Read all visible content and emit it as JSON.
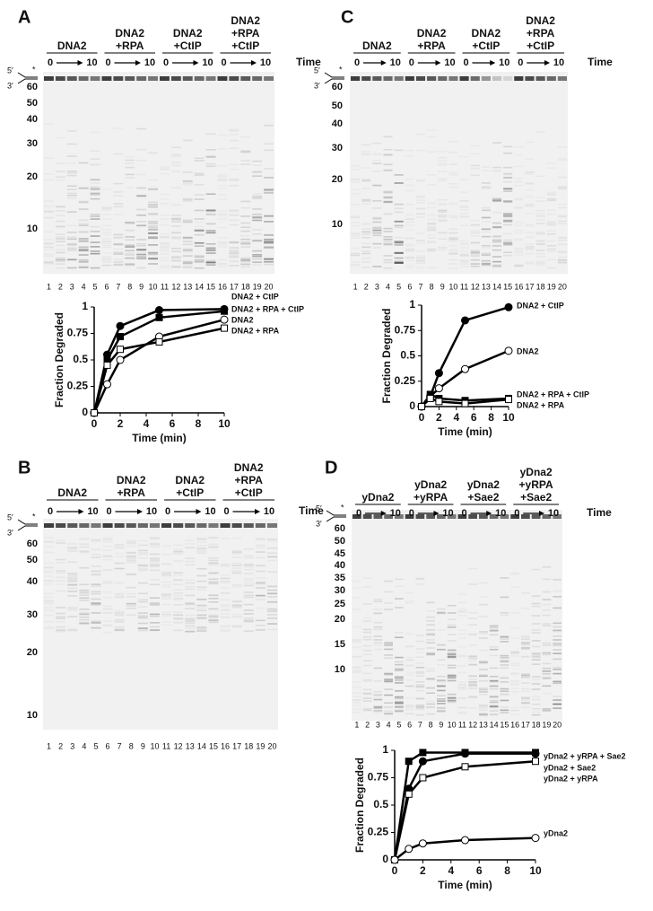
{
  "panels": [
    {
      "label": "A",
      "groups": [
        [
          "DNA2"
        ],
        [
          "DNA2",
          "+RPA"
        ],
        [
          "DNA2",
          "+CtIP"
        ],
        [
          "DNA2",
          "+RPA",
          "+CtIP"
        ]
      ],
      "time_start": 0,
      "time_end": 10,
      "time_label": "Time",
      "five_prime": "5′",
      "three_prime": "3′",
      "star": "*",
      "markers": [
        60,
        50,
        40,
        30,
        20,
        10
      ],
      "lanes": [
        1,
        2,
        3,
        4,
        5,
        6,
        7,
        8,
        9,
        10,
        11,
        12,
        13,
        14,
        15,
        16,
        17,
        18,
        19,
        20
      ]
    },
    {
      "label": "B",
      "groups": [
        [
          "DNA2"
        ],
        [
          "DNA2",
          "+RPA"
        ],
        [
          "DNA2",
          "+CtIP"
        ],
        [
          "DNA2",
          "+RPA",
          "+CtIP"
        ]
      ],
      "time_start": 0,
      "time_end": 10,
      "time_label": "Time",
      "five_prime": "5′",
      "three_prime": "3′",
      "star": "*",
      "markers": [
        60,
        50,
        40,
        30,
        20,
        10
      ],
      "lanes": [
        1,
        2,
        3,
        4,
        5,
        6,
        7,
        8,
        9,
        10,
        11,
        12,
        13,
        14,
        15,
        16,
        17,
        18,
        19,
        20
      ]
    },
    {
      "label": "C",
      "groups": [
        [
          "DNA2"
        ],
        [
          "DNA2",
          "+RPA"
        ],
        [
          "DNA2",
          "+CtIP"
        ],
        [
          "DNA2",
          "+RPA",
          "+CtIP"
        ]
      ],
      "time_start": 0,
      "time_end": 10,
      "time_label": "Time",
      "five_prime": "5′",
      "three_prime": "3′",
      "star": "*",
      "markers": [
        60,
        50,
        40,
        30,
        20,
        10
      ],
      "lanes": [
        1,
        2,
        3,
        4,
        5,
        6,
        7,
        8,
        9,
        10,
        11,
        12,
        13,
        14,
        15,
        16,
        17,
        18,
        19,
        20
      ]
    },
    {
      "label": "D",
      "groups": [
        [
          "yDna2"
        ],
        [
          "yDna2",
          "+yRPA"
        ],
        [
          "yDna2",
          "+Sae2"
        ],
        [
          "yDna2",
          "+yRPA",
          "+Sae2"
        ]
      ],
      "time_start": 0,
      "time_end": 10,
      "time_label": "Time",
      "five_prime": "5′",
      "three_prime": "3′",
      "star": "*",
      "markers": [
        60,
        50,
        45,
        40,
        35,
        30,
        25,
        20,
        15,
        10
      ],
      "lanes": [
        1,
        2,
        3,
        4,
        5,
        6,
        7,
        8,
        9,
        10,
        11,
        12,
        13,
        14,
        15,
        16,
        17,
        18,
        19,
        20
      ]
    }
  ],
  "chart_data": [
    {
      "type": "line",
      "x_label": "Time (min)",
      "y_label": "Fraction Degraded",
      "x": [
        0,
        1,
        2,
        5,
        10
      ],
      "xlim": [
        0,
        10
      ],
      "xticks": [
        0,
        2,
        4,
        6,
        8,
        10
      ],
      "ylim": [
        0,
        1
      ],
      "yticks": [
        0,
        0.25,
        0.5,
        0.75,
        1
      ],
      "series": [
        {
          "name": "DNA2 + CtIP",
          "color": "#000000",
          "marker": "circle",
          "filled": true,
          "values": [
            0,
            0.55,
            0.82,
            0.97,
            0.98
          ]
        },
        {
          "name": "DNA2 + RPA + CtIP",
          "color": "#000000",
          "marker": "square",
          "filled": true,
          "values": [
            0,
            0.5,
            0.72,
            0.9,
            0.96
          ]
        },
        {
          "name": "DNA2",
          "color": "#000000",
          "marker": "circle",
          "filled": false,
          "values": [
            0,
            0.27,
            0.5,
            0.72,
            0.88
          ]
        },
        {
          "name": "DNA2 + RPA",
          "color": "#000000",
          "marker": "square",
          "filled": false,
          "values": [
            0,
            0.45,
            0.6,
            0.67,
            0.8
          ]
        }
      ]
    },
    {
      "type": "line",
      "x_label": "Time (min)",
      "y_label": "Fraction Degraded",
      "x": [
        0,
        1,
        2,
        5,
        10
      ],
      "xlim": [
        0,
        10
      ],
      "xticks": [
        0,
        2,
        4,
        6,
        8,
        10
      ],
      "ylim": [
        0,
        1
      ],
      "yticks": [
        0,
        0.25,
        0.5,
        0.75,
        1
      ],
      "series": [
        {
          "name": "DNA2 + CtIP",
          "color": "#000000",
          "marker": "circle",
          "filled": true,
          "values": [
            0,
            0.1,
            0.33,
            0.85,
            0.98
          ]
        },
        {
          "name": "DNA2",
          "color": "#000000",
          "marker": "circle",
          "filled": false,
          "values": [
            0,
            0.1,
            0.18,
            0.37,
            0.55
          ]
        },
        {
          "name": "DNA2 + RPA + CtIP",
          "color": "#000000",
          "marker": "square",
          "filled": true,
          "values": [
            0,
            0.12,
            0.08,
            0.06,
            0.08
          ]
        },
        {
          "name": "DNA2 + RPA",
          "color": "#000000",
          "marker": "square",
          "filled": false,
          "values": [
            0,
            0.08,
            0.05,
            0.03,
            0.07
          ]
        }
      ]
    },
    {
      "type": "line",
      "x_label": "Time (min)",
      "y_label": "Fraction Degraded",
      "x": [
        0,
        1,
        2,
        5,
        10
      ],
      "xlim": [
        0,
        10
      ],
      "xticks": [
        0,
        2,
        4,
        6,
        8,
        10
      ],
      "ylim": [
        0,
        1
      ],
      "yticks": [
        0,
        0.25,
        0.5,
        0.75,
        1
      ],
      "series": [
        {
          "name": "yDna2 + yRPA + Sae2",
          "color": "#000000",
          "marker": "square",
          "filled": true,
          "values": [
            0,
            0.9,
            0.98,
            0.98,
            0.98
          ]
        },
        {
          "name": "yDna2 + Sae2",
          "color": "#000000",
          "marker": "circle",
          "filled": true,
          "values": [
            0,
            0.65,
            0.9,
            0.97,
            0.97
          ]
        },
        {
          "name": "yDna2 + yRPA",
          "color": "#000000",
          "marker": "square",
          "filled": false,
          "values": [
            0,
            0.6,
            0.75,
            0.85,
            0.9
          ]
        },
        {
          "name": "yDna2",
          "color": "#000000",
          "marker": "circle",
          "filled": false,
          "values": [
            0,
            0.1,
            0.15,
            0.18,
            0.2
          ]
        }
      ]
    }
  ]
}
